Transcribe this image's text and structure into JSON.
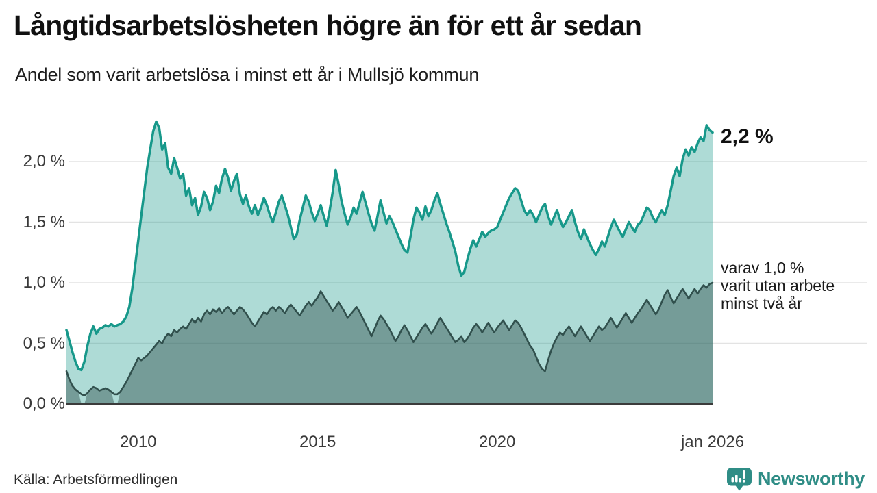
{
  "header": {
    "title": "Långtidsarbetslösheten högre än för ett år sedan",
    "subtitle": "Andel som varit arbetslösa i minst ett år i Mullsjö kommun"
  },
  "chart_data": {
    "type": "area",
    "title": "Långtidsarbetslösheten högre än för ett år sedan",
    "subtitle": "Andel som varit arbetslösa i minst ett år i Mullsjö kommun",
    "unit": "%",
    "frequency": "monthly",
    "x_start": "jan 2008",
    "x_end": "jan 2026",
    "ylim": [
      0,
      2.45
    ],
    "grid": true,
    "y_ticks": [
      {
        "label": "0,0 %",
        "value": 0
      },
      {
        "label": "0,5 %",
        "value": 0.5
      },
      {
        "label": "1,0 %",
        "value": 1.0
      },
      {
        "label": "1,5 %",
        "value": 1.5
      },
      {
        "label": "2,0 %",
        "value": 2.0
      }
    ],
    "x_ticks": [
      {
        "label": "2010",
        "year": 2010
      },
      {
        "label": "2015",
        "year": 2015
      },
      {
        "label": "2020",
        "year": 2020
      },
      {
        "label": "jan 2026",
        "year": 2026
      }
    ],
    "end_label": "2,2 %",
    "note_label": {
      "lines": [
        "varav 1,0 %",
        "varit utan arbete",
        "minst två år"
      ]
    },
    "series": [
      {
        "name": "Arbetslösa minst ett år",
        "line_color": "#17988a",
        "fill_color": "rgba(23,152,138,0.35)",
        "line_width": 3.5,
        "values": [
          0.61,
          0.52,
          0.43,
          0.35,
          0.29,
          0.28,
          0.35,
          0.48,
          0.58,
          0.64,
          0.58,
          0.62,
          0.63,
          0.65,
          0.64,
          0.66,
          0.64,
          0.65,
          0.66,
          0.68,
          0.72,
          0.8,
          0.95,
          1.15,
          1.35,
          1.55,
          1.75,
          1.95,
          2.1,
          2.25,
          2.33,
          2.28,
          2.1,
          2.15,
          1.95,
          1.9,
          2.03,
          1.95,
          1.86,
          1.9,
          1.72,
          1.78,
          1.64,
          1.7,
          1.56,
          1.63,
          1.75,
          1.7,
          1.6,
          1.67,
          1.8,
          1.74,
          1.86,
          1.94,
          1.87,
          1.76,
          1.84,
          1.9,
          1.73,
          1.65,
          1.72,
          1.63,
          1.57,
          1.64,
          1.56,
          1.62,
          1.7,
          1.64,
          1.56,
          1.5,
          1.58,
          1.67,
          1.72,
          1.64,
          1.56,
          1.46,
          1.36,
          1.4,
          1.52,
          1.62,
          1.72,
          1.67,
          1.58,
          1.51,
          1.57,
          1.64,
          1.55,
          1.47,
          1.6,
          1.75,
          1.93,
          1.81,
          1.67,
          1.57,
          1.48,
          1.54,
          1.62,
          1.57,
          1.66,
          1.75,
          1.66,
          1.57,
          1.49,
          1.43,
          1.55,
          1.68,
          1.58,
          1.49,
          1.55,
          1.5,
          1.44,
          1.38,
          1.32,
          1.27,
          1.25,
          1.38,
          1.52,
          1.62,
          1.58,
          1.52,
          1.63,
          1.55,
          1.6,
          1.68,
          1.74,
          1.65,
          1.57,
          1.49,
          1.42,
          1.34,
          1.26,
          1.14,
          1.06,
          1.09,
          1.19,
          1.28,
          1.35,
          1.3,
          1.36,
          1.42,
          1.38,
          1.41,
          1.43,
          1.44,
          1.46,
          1.52,
          1.58,
          1.64,
          1.7,
          1.74,
          1.78,
          1.76,
          1.68,
          1.6,
          1.56,
          1.6,
          1.56,
          1.5,
          1.56,
          1.62,
          1.65,
          1.55,
          1.48,
          1.54,
          1.6,
          1.52,
          1.46,
          1.5,
          1.55,
          1.6,
          1.5,
          1.42,
          1.36,
          1.44,
          1.38,
          1.32,
          1.27,
          1.23,
          1.28,
          1.34,
          1.3,
          1.38,
          1.46,
          1.52,
          1.47,
          1.42,
          1.38,
          1.44,
          1.5,
          1.46,
          1.42,
          1.48,
          1.5,
          1.56,
          1.62,
          1.6,
          1.54,
          1.5,
          1.55,
          1.6,
          1.56,
          1.64,
          1.76,
          1.88,
          1.95,
          1.88,
          2.02,
          2.1,
          2.05,
          2.12,
          2.08,
          2.15,
          2.2,
          2.17,
          2.3,
          2.26,
          2.24
        ]
      },
      {
        "name": "Arbetslösa minst två år",
        "line_color": "#31504d",
        "fill_color": "rgba(49,80,77,0.45)",
        "line_width": 2.6,
        "fill_gaps": [
          [
            5,
            6
          ],
          [
            16,
            17
          ]
        ],
        "values": [
          0.27,
          0.2,
          0.15,
          0.12,
          0.1,
          0.08,
          0.07,
          0.09,
          0.12,
          0.14,
          0.13,
          0.11,
          0.12,
          0.13,
          0.12,
          0.1,
          0.08,
          0.08,
          0.1,
          0.14,
          0.18,
          0.23,
          0.28,
          0.33,
          0.38,
          0.36,
          0.38,
          0.4,
          0.43,
          0.46,
          0.49,
          0.52,
          0.5,
          0.55,
          0.58,
          0.56,
          0.61,
          0.59,
          0.62,
          0.64,
          0.62,
          0.66,
          0.7,
          0.67,
          0.71,
          0.68,
          0.74,
          0.77,
          0.74,
          0.78,
          0.76,
          0.79,
          0.75,
          0.78,
          0.8,
          0.77,
          0.74,
          0.77,
          0.8,
          0.78,
          0.75,
          0.71,
          0.67,
          0.64,
          0.68,
          0.72,
          0.76,
          0.74,
          0.78,
          0.8,
          0.77,
          0.8,
          0.78,
          0.75,
          0.79,
          0.82,
          0.79,
          0.76,
          0.73,
          0.77,
          0.81,
          0.84,
          0.81,
          0.85,
          0.88,
          0.93,
          0.89,
          0.85,
          0.81,
          0.77,
          0.8,
          0.84,
          0.8,
          0.76,
          0.71,
          0.74,
          0.77,
          0.8,
          0.76,
          0.71,
          0.66,
          0.61,
          0.56,
          0.62,
          0.68,
          0.73,
          0.7,
          0.66,
          0.62,
          0.57,
          0.52,
          0.56,
          0.61,
          0.65,
          0.61,
          0.56,
          0.51,
          0.55,
          0.59,
          0.63,
          0.66,
          0.62,
          0.58,
          0.62,
          0.67,
          0.71,
          0.67,
          0.63,
          0.59,
          0.55,
          0.51,
          0.53,
          0.56,
          0.51,
          0.54,
          0.58,
          0.63,
          0.66,
          0.63,
          0.59,
          0.63,
          0.67,
          0.63,
          0.59,
          0.63,
          0.66,
          0.69,
          0.65,
          0.61,
          0.65,
          0.69,
          0.67,
          0.63,
          0.58,
          0.53,
          0.48,
          0.45,
          0.39,
          0.33,
          0.29,
          0.27,
          0.36,
          0.44,
          0.5,
          0.55,
          0.59,
          0.57,
          0.61,
          0.64,
          0.6,
          0.56,
          0.6,
          0.64,
          0.6,
          0.56,
          0.52,
          0.56,
          0.6,
          0.64,
          0.61,
          0.63,
          0.67,
          0.71,
          0.67,
          0.63,
          0.67,
          0.71,
          0.75,
          0.71,
          0.67,
          0.71,
          0.75,
          0.78,
          0.82,
          0.86,
          0.82,
          0.78,
          0.74,
          0.78,
          0.84,
          0.9,
          0.94,
          0.88,
          0.83,
          0.87,
          0.91,
          0.95,
          0.91,
          0.87,
          0.91,
          0.95,
          0.91,
          0.95,
          0.98,
          0.96,
          0.99,
          1.0
        ]
      }
    ]
  },
  "footer": {
    "source": "Källa: Arbetsförmedlingen",
    "brand": "Newsworthy"
  },
  "colors": {
    "accent_teal": "#17988a",
    "dark_series": "#31504d",
    "grid": "#e3e3e3",
    "axis": "#3b3b3b",
    "brand_teal": "#2f8d86"
  }
}
